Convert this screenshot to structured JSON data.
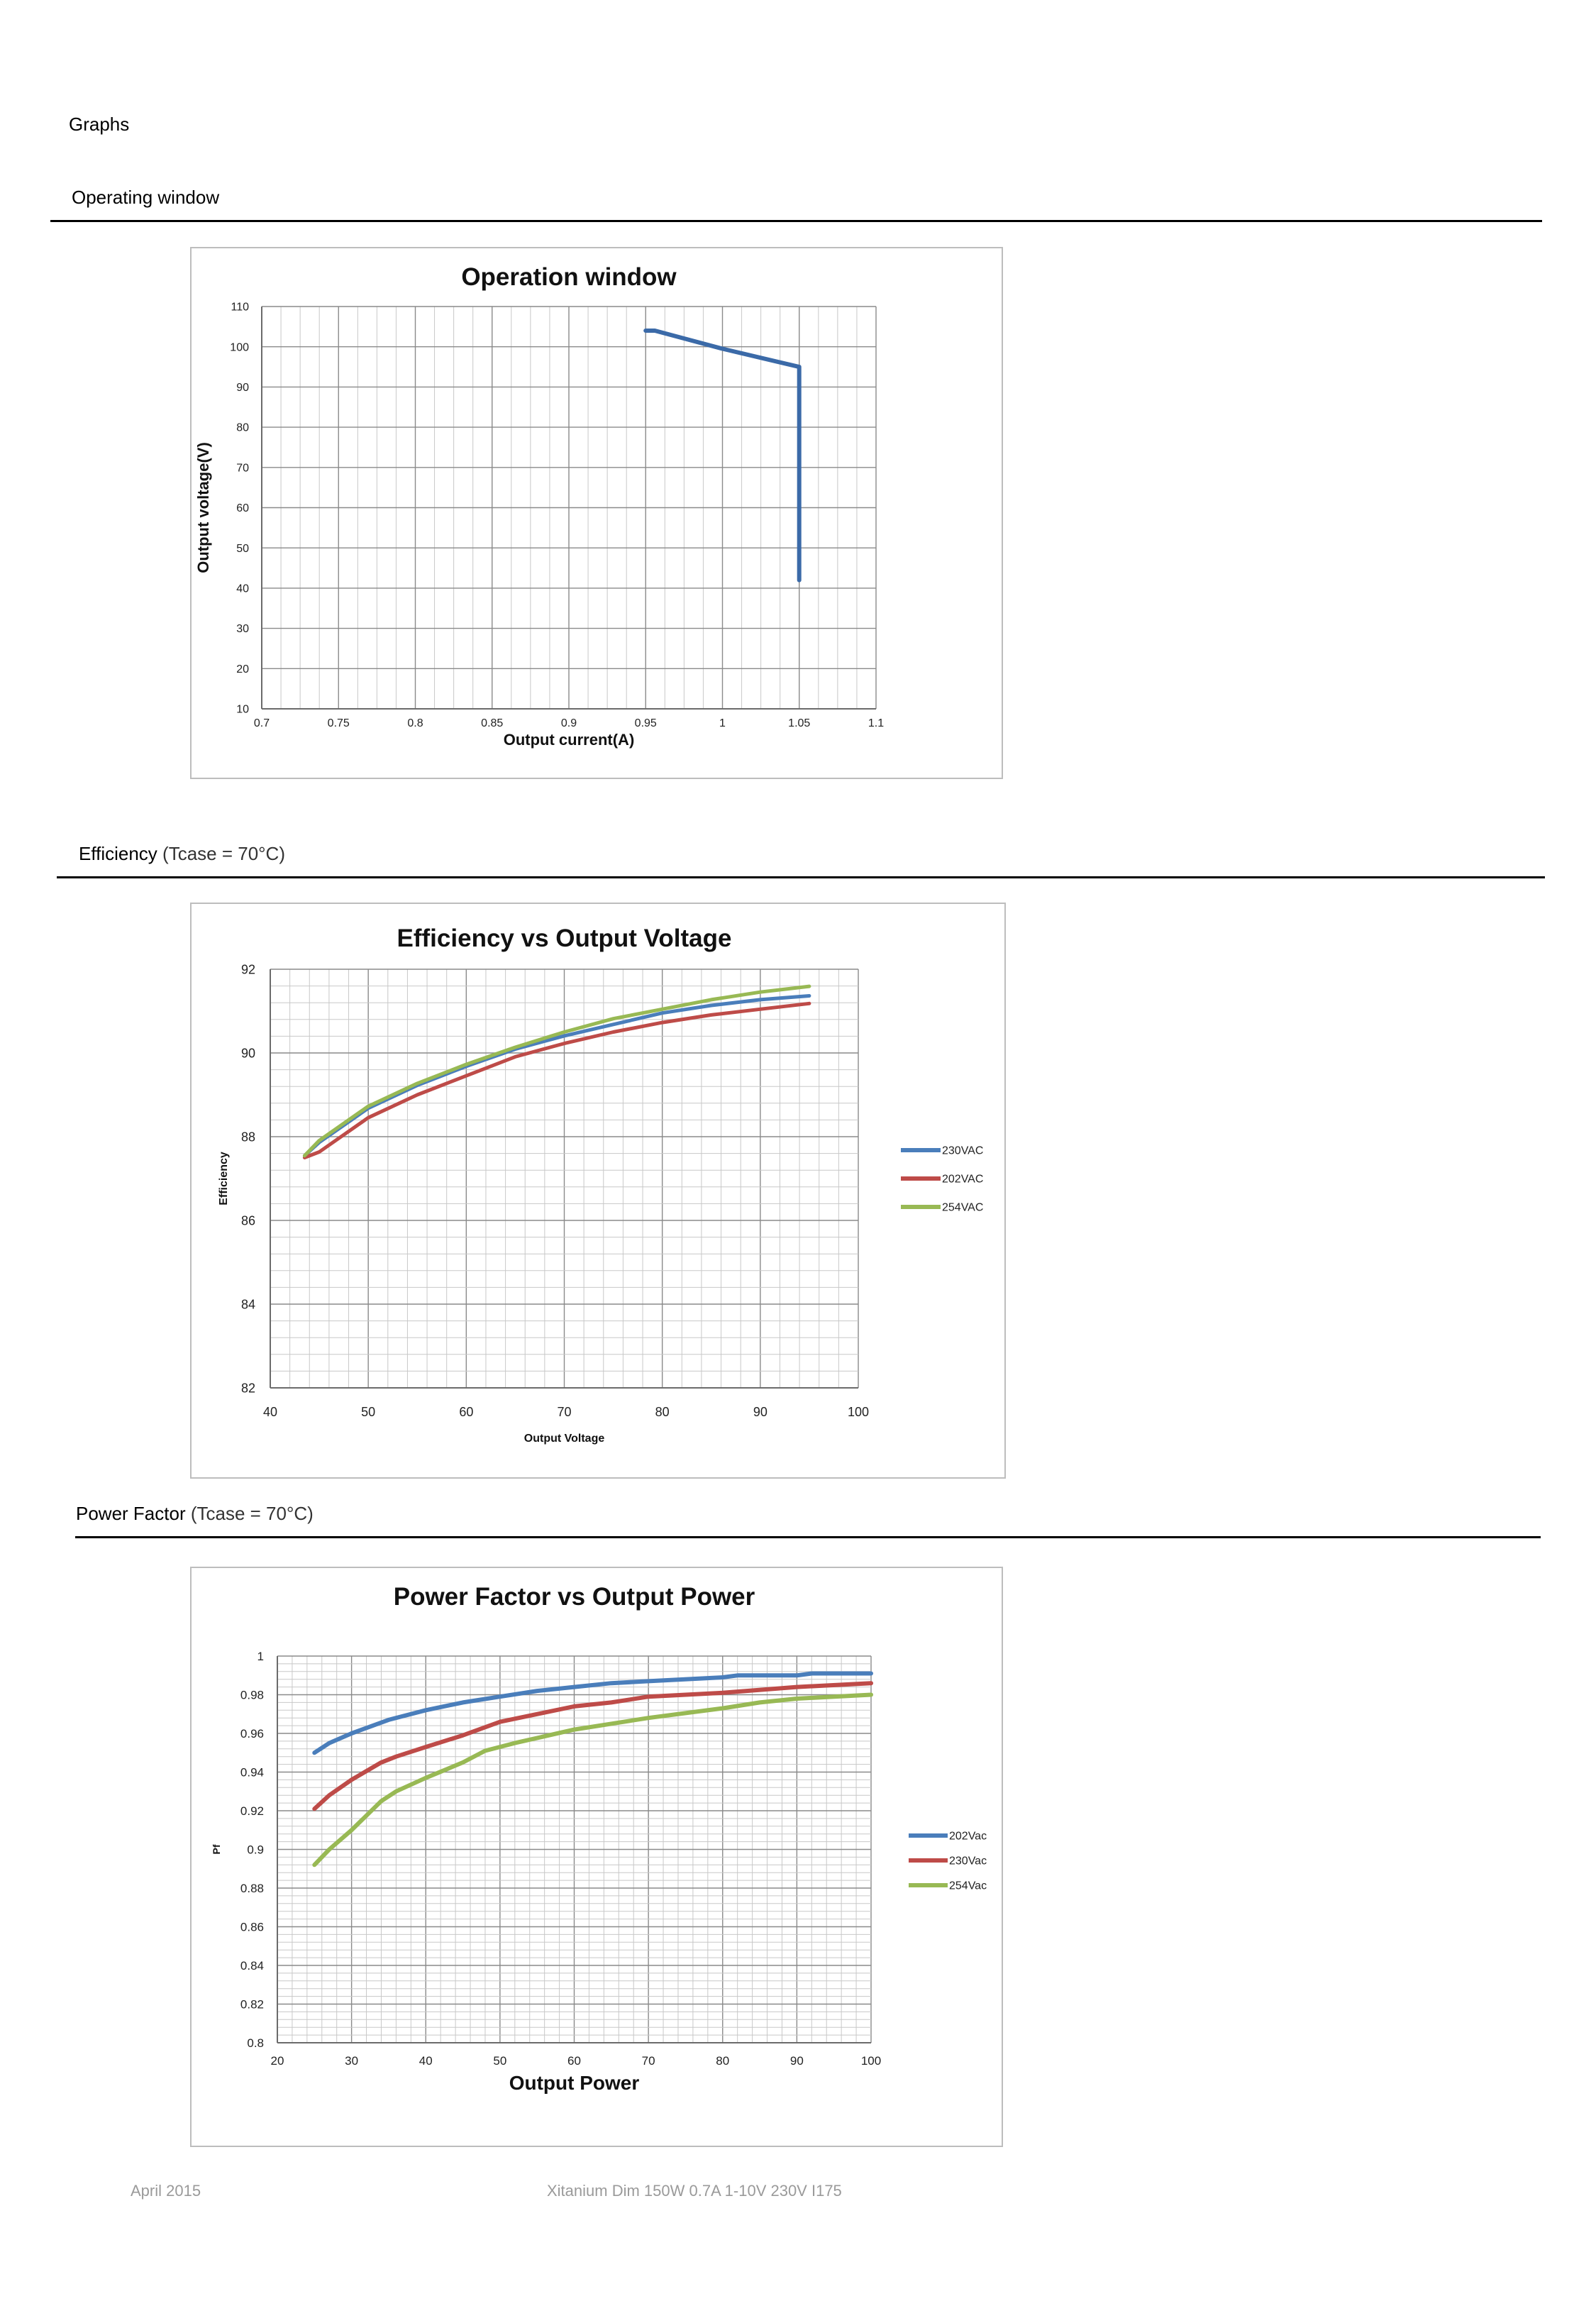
{
  "page": {
    "heading": "Graphs",
    "sections": [
      {
        "title": "Operating window",
        "note": ""
      },
      {
        "title": "Efficiency",
        "note": "(Tcase = 70°C)"
      },
      {
        "title": "Power Factor",
        "note": "(Tcase = 70°C)"
      }
    ],
    "footer": {
      "date": "April 2015",
      "product": "Xitanium Dim 150W 0.7A 1-10V 230V I175"
    }
  },
  "chart_data": [
    {
      "type": "line",
      "title": "Operation window",
      "xlabel": "Output current(A)",
      "ylabel": "Output voltage(V)",
      "xlim": [
        0.7,
        1.1
      ],
      "ylim": [
        10,
        110
      ],
      "xticks": [
        "0.7",
        "0.75",
        "0.8",
        "0.85",
        "0.9",
        "0.95",
        "1",
        "1.05",
        "1.1"
      ],
      "yticks": [
        "10",
        "20",
        "30",
        "40",
        "50",
        "60",
        "70",
        "80",
        "90",
        "100",
        "110"
      ],
      "grid": true,
      "legend": "none",
      "series": [
        {
          "name": "",
          "color": "#3b6aa8",
          "points": [
            [
              0.95,
              104
            ],
            [
              0.956,
              104
            ],
            [
              1.0,
              99.5
            ],
            [
              1.05,
              95
            ],
            [
              1.05,
              42
            ]
          ]
        }
      ]
    },
    {
      "type": "line",
      "title": "Efficiency vs Output Voltage",
      "xlabel": "Output Voltage",
      "ylabel": "Efficiency",
      "xlim": [
        40,
        100
      ],
      "ylim": [
        82,
        93
      ],
      "xticks": [
        "40",
        "50",
        "60",
        "70",
        "80",
        "90",
        "100"
      ],
      "yticks": [
        "82",
        "84",
        "86",
        "88",
        "90",
        "92"
      ],
      "grid": true,
      "legend": "right",
      "series": [
        {
          "name": "230VAC",
          "color": "#4a7ebb",
          "points": [
            [
              43.5,
              88.1
            ],
            [
              45,
              88.45
            ],
            [
              50,
              89.35
            ],
            [
              55,
              89.95
            ],
            [
              60,
              90.45
            ],
            [
              65,
              90.9
            ],
            [
              70,
              91.25
            ],
            [
              75,
              91.55
            ],
            [
              80,
              91.85
            ],
            [
              85,
              92.05
            ],
            [
              90,
              92.2
            ],
            [
              95,
              92.3
            ]
          ]
        },
        {
          "name": "202VAC",
          "color": "#be4b48",
          "points": [
            [
              43.5,
              88.05
            ],
            [
              45,
              88.2
            ],
            [
              50,
              89.1
            ],
            [
              55,
              89.7
            ],
            [
              60,
              90.2
            ],
            [
              65,
              90.7
            ],
            [
              70,
              91.05
            ],
            [
              75,
              91.35
            ],
            [
              80,
              91.6
            ],
            [
              85,
              91.8
            ],
            [
              90,
              91.95
            ],
            [
              95,
              92.1
            ]
          ]
        },
        {
          "name": "254VAC",
          "color": "#98b954",
          "points": [
            [
              43.5,
              88.1
            ],
            [
              45,
              88.5
            ],
            [
              50,
              89.4
            ],
            [
              55,
              90.0
            ],
            [
              60,
              90.5
            ],
            [
              65,
              90.95
            ],
            [
              70,
              91.35
            ],
            [
              75,
              91.7
            ],
            [
              80,
              91.95
            ],
            [
              85,
              92.2
            ],
            [
              90,
              92.4
            ],
            [
              95,
              92.55
            ]
          ]
        }
      ]
    },
    {
      "type": "line",
      "title": "Power Factor vs Output Power",
      "xlabel": "Output Power",
      "ylabel": "Pf",
      "xlim": [
        20,
        100
      ],
      "ylim": [
        0.8,
        1
      ],
      "xticks": [
        "20",
        "30",
        "40",
        "50",
        "60",
        "70",
        "80",
        "90",
        "100"
      ],
      "yticks": [
        "0.8",
        "0.82",
        "0.84",
        "0.86",
        "0.88",
        "0.9",
        "0.92",
        "0.94",
        "0.96",
        "0.98",
        "1"
      ],
      "grid": true,
      "legend": "right",
      "series": [
        {
          "name": "202Vac",
          "color": "#4a7ebb",
          "points": [
            [
              25,
              0.95
            ],
            [
              27,
              0.955
            ],
            [
              30,
              0.96
            ],
            [
              35,
              0.967
            ],
            [
              40,
              0.972
            ],
            [
              45,
              0.976
            ],
            [
              50,
              0.979
            ],
            [
              55,
              0.982
            ],
            [
              60,
              0.984
            ],
            [
              65,
              0.986
            ],
            [
              70,
              0.987
            ],
            [
              80,
              0.989
            ],
            [
              82,
              0.99
            ],
            [
              90,
              0.99
            ],
            [
              92,
              0.991
            ],
            [
              100,
              0.991
            ]
          ]
        },
        {
          "name": "230Vac",
          "color": "#be4b48",
          "points": [
            [
              25,
              0.921
            ],
            [
              27,
              0.928
            ],
            [
              30,
              0.936
            ],
            [
              34,
              0.945
            ],
            [
              36,
              0.948
            ],
            [
              40,
              0.953
            ],
            [
              45,
              0.959
            ],
            [
              50,
              0.966
            ],
            [
              55,
              0.97
            ],
            [
              60,
              0.974
            ],
            [
              65,
              0.976
            ],
            [
              70,
              0.979
            ],
            [
              80,
              0.981
            ],
            [
              90,
              0.984
            ],
            [
              100,
              0.986
            ]
          ]
        },
        {
          "name": "254Vac",
          "color": "#98b954",
          "points": [
            [
              25,
              0.892
            ],
            [
              27,
              0.9
            ],
            [
              30,
              0.91
            ],
            [
              34,
              0.925
            ],
            [
              36,
              0.93
            ],
            [
              40,
              0.937
            ],
            [
              45,
              0.945
            ],
            [
              48,
              0.951
            ],
            [
              52,
              0.955
            ],
            [
              60,
              0.962
            ],
            [
              70,
              0.968
            ],
            [
              80,
              0.973
            ],
            [
              85,
              0.976
            ],
            [
              90,
              0.978
            ],
            [
              100,
              0.98
            ]
          ]
        }
      ]
    }
  ]
}
